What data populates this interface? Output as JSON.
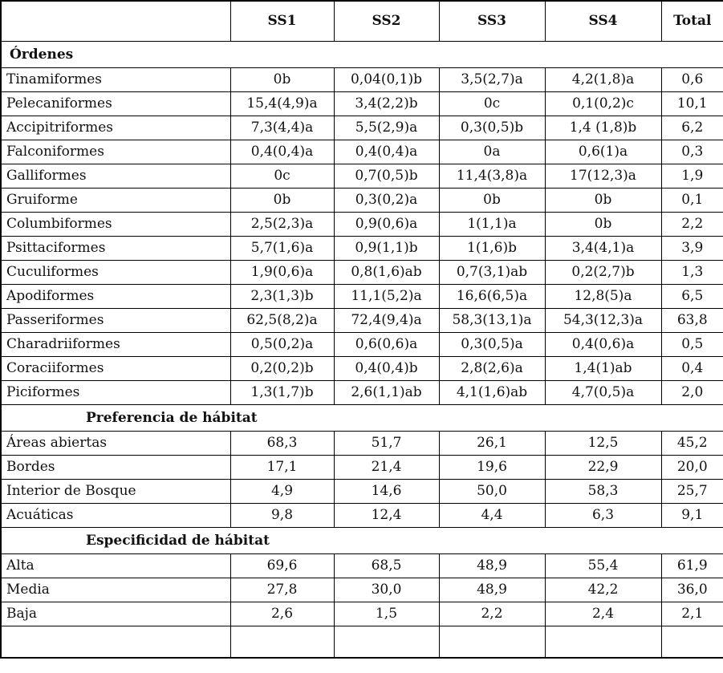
{
  "table": {
    "columns": [
      "",
      "SS1",
      "SS2",
      "SS3",
      "SS4",
      "Total"
    ],
    "sections": [
      {
        "title": "Órdenes",
        "indent": false,
        "rows": [
          {
            "label": "Tinamiformes",
            "values": [
              "0b",
              "0,04(0,1)b",
              "3,5(2,7)a",
              "4,2(1,8)a",
              "0,6"
            ]
          },
          {
            "label": "Pelecaniformes",
            "values": [
              "15,4(4,9)a",
              "3,4(2,2)b",
              "0c",
              "0,1(0,2)c",
              "10,1"
            ]
          },
          {
            "label": "Accipitriformes",
            "values": [
              "7,3(4,4)a",
              "5,5(2,9)a",
              "0,3(0,5)b",
              "1,4 (1,8)b",
              "6,2"
            ]
          },
          {
            "label": "Falconiformes",
            "values": [
              "0,4(0,4)a",
              "0,4(0,4)a",
              "0a",
              "0,6(1)a",
              "0,3"
            ]
          },
          {
            "label": "Galliformes",
            "values": [
              "0c",
              "0,7(0,5)b",
              "11,4(3,8)a",
              "17(12,3)a",
              "1,9"
            ]
          },
          {
            "label": "Gruiforme",
            "values": [
              "0b",
              "0,3(0,2)a",
              "0b",
              "0b",
              "0,1"
            ]
          },
          {
            "label": "Columbiformes",
            "values": [
              "2,5(2,3)a",
              "0,9(0,6)a",
              "1(1,1)a",
              "0b",
              "2,2"
            ]
          },
          {
            "label": "Psittaciformes",
            "values": [
              "5,7(1,6)a",
              "0,9(1,1)b",
              "1(1,6)b",
              "3,4(4,1)a",
              "3,9"
            ]
          },
          {
            "label": "Cuculiformes",
            "values": [
              "1,9(0,6)a",
              "0,8(1,6)ab",
              "0,7(3,1)ab",
              "0,2(2,7)b",
              "1,3"
            ]
          },
          {
            "label": "Apodiformes",
            "values": [
              "2,3(1,3)b",
              "11,1(5,2)a",
              "16,6(6,5)a",
              "12,8(5)a",
              "6,5"
            ]
          },
          {
            "label": "Passeriformes",
            "values": [
              "62,5(8,2)a",
              "72,4(9,4)a",
              "58,3(13,1)a",
              "54,3(12,3)a",
              "63,8"
            ]
          },
          {
            "label": "Charadriiformes",
            "values": [
              "0,5(0,2)a",
              "0,6(0,6)a",
              "0,3(0,5)a",
              "0,4(0,6)a",
              "0,5"
            ]
          },
          {
            "label": "Coraciiformes",
            "values": [
              "0,2(0,2)b",
              "0,4(0,4)b",
              "2,8(2,6)a",
              "1,4(1)ab",
              "0,4"
            ]
          },
          {
            "label": "Piciformes",
            "values": [
              "1,3(1,7)b",
              "2,6(1,1)ab",
              "4,1(1,6)ab",
              "4,7(0,5)a",
              "2,0"
            ]
          }
        ]
      },
      {
        "title": "Preferencia de hábitat",
        "indent": true,
        "rows": [
          {
            "label": "Áreas abiertas",
            "values": [
              "68,3",
              "51,7",
              "26,1",
              "12,5",
              "45,2"
            ]
          },
          {
            "label": "Bordes",
            "values": [
              "17,1",
              "21,4",
              "19,6",
              "22,9",
              "20,0"
            ]
          },
          {
            "label": "Interior de Bosque",
            "values": [
              "4,9",
              "14,6",
              "50,0",
              "58,3",
              "25,7"
            ]
          },
          {
            "label": "Acuáticas",
            "values": [
              "9,8",
              "12,4",
              "4,4",
              "6,3",
              "9,1"
            ]
          }
        ]
      },
      {
        "title": "Especificidad de hábitat",
        "indent": true,
        "rows": [
          {
            "label": "Alta",
            "values": [
              "69,6",
              "68,5",
              "48,9",
              "55,4",
              "61,9"
            ]
          },
          {
            "label": "Media",
            "values": [
              "27,8",
              "30,0",
              "48,9",
              "42,2",
              "36,0"
            ]
          },
          {
            "label": "Baja",
            "values": [
              "2,6",
              "1,5",
              "2,2",
              "2,4",
              "2,1"
            ]
          }
        ]
      }
    ]
  },
  "colors": {
    "border": "#000000",
    "text": "#111111",
    "background": "#ffffff"
  }
}
